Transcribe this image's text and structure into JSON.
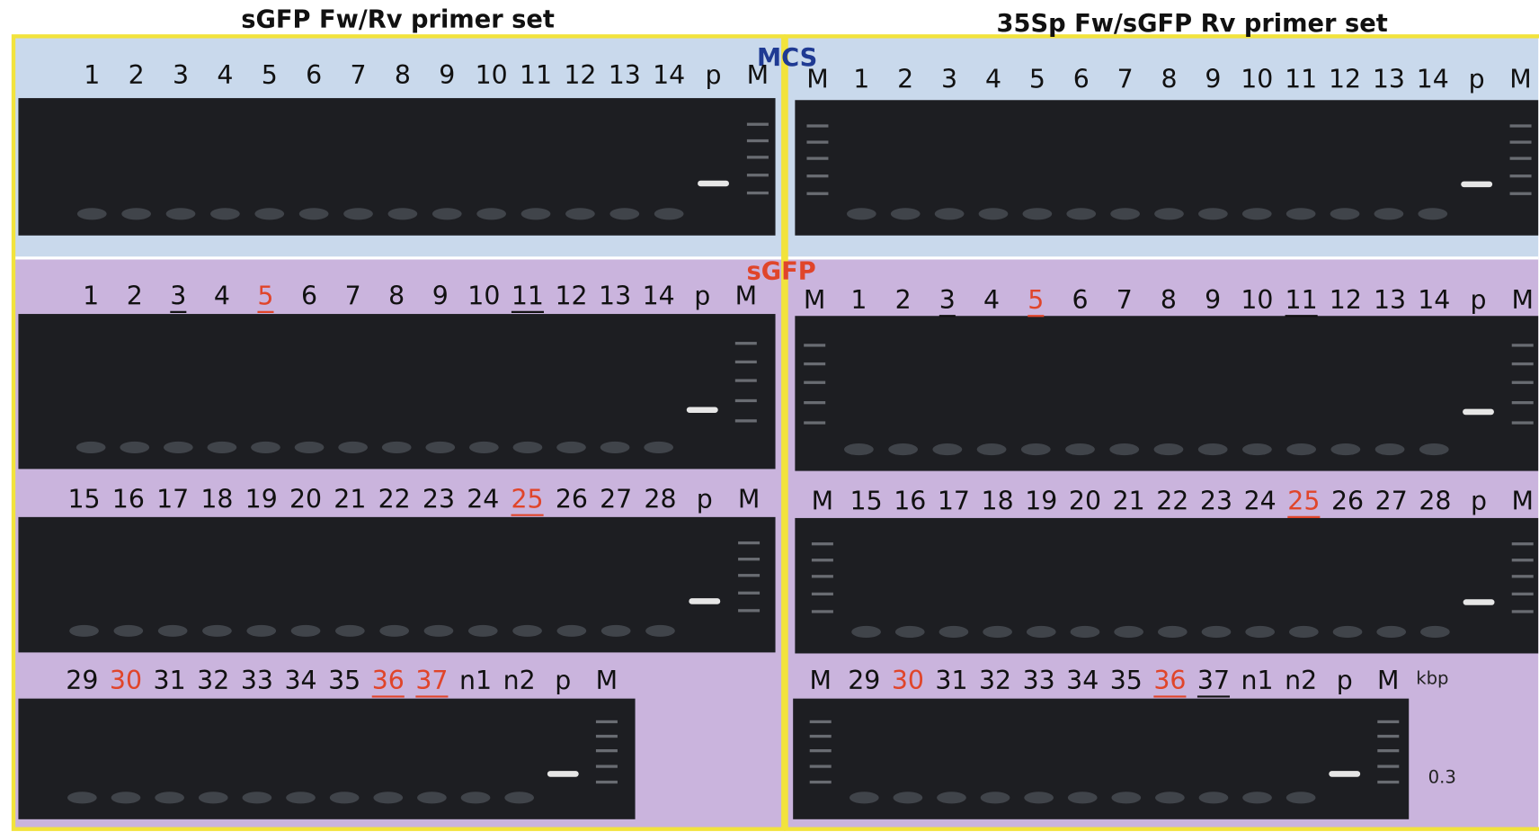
{
  "label_color": "#111111",
  "mcs_label": {
    "text": "MCS",
    "color": "#1f3a93"
  },
  "sgfp_label": {
    "text": "sGFP",
    "color": "#e0452a"
  },
  "kbp_label": "kbp",
  "size_label": "0.3",
  "panels": [
    {
      "title": "sGFP Fw/Rv primer set",
      "rows": [
        {
          "lanes": [
            {
              "text": "1"
            },
            {
              "text": "2"
            },
            {
              "text": "3"
            },
            {
              "text": "4"
            },
            {
              "text": "5"
            },
            {
              "text": "6"
            },
            {
              "text": "7"
            },
            {
              "text": "8"
            },
            {
              "text": "9"
            },
            {
              "text": "10"
            },
            {
              "text": "11"
            },
            {
              "text": "12"
            },
            {
              "text": "13"
            },
            {
              "text": "14"
            },
            {
              "text": "p"
            },
            {
              "text": "M"
            }
          ]
        },
        {
          "lanes": [
            {
              "text": "1"
            },
            {
              "text": "2"
            },
            {
              "text": "3",
              "underline": true
            },
            {
              "text": "4"
            },
            {
              "text": "5",
              "color": "#e0452a",
              "underline": true
            },
            {
              "text": "6"
            },
            {
              "text": "7"
            },
            {
              "text": "8"
            },
            {
              "text": "9"
            },
            {
              "text": "10"
            },
            {
              "text": "11",
              "underline": true
            },
            {
              "text": "12"
            },
            {
              "text": "13"
            },
            {
              "text": "14"
            },
            {
              "text": "p"
            },
            {
              "text": "M"
            }
          ]
        },
        {
          "lanes": [
            {
              "text": "15"
            },
            {
              "text": "16"
            },
            {
              "text": "17"
            },
            {
              "text": "18"
            },
            {
              "text": "19"
            },
            {
              "text": "20"
            },
            {
              "text": "21"
            },
            {
              "text": "22"
            },
            {
              "text": "23"
            },
            {
              "text": "24"
            },
            {
              "text": "25",
              "color": "#e0452a",
              "underline": true
            },
            {
              "text": "26"
            },
            {
              "text": "27"
            },
            {
              "text": "28"
            },
            {
              "text": "p"
            },
            {
              "text": "M"
            }
          ]
        },
        {
          "lanes": [
            {
              "text": "29"
            },
            {
              "text": "30",
              "color": "#e0452a"
            },
            {
              "text": "31"
            },
            {
              "text": "32"
            },
            {
              "text": "33"
            },
            {
              "text": "34"
            },
            {
              "text": "35"
            },
            {
              "text": "36",
              "color": "#e0452a",
              "underline": true
            },
            {
              "text": "37",
              "color": "#e0452a",
              "underline": true
            },
            {
              "text": "n1"
            },
            {
              "text": "n2"
            },
            {
              "text": "p"
            },
            {
              "text": "M"
            }
          ]
        }
      ]
    },
    {
      "title": "35Sp Fw/sGFP Rv primer set",
      "rows": [
        {
          "lanes": [
            {
              "text": "M"
            },
            {
              "text": "1"
            },
            {
              "text": "2"
            },
            {
              "text": "3"
            },
            {
              "text": "4"
            },
            {
              "text": "5"
            },
            {
              "text": "6"
            },
            {
              "text": "7"
            },
            {
              "text": "8"
            },
            {
              "text": "9"
            },
            {
              "text": "10"
            },
            {
              "text": "11"
            },
            {
              "text": "12"
            },
            {
              "text": "13"
            },
            {
              "text": "14"
            },
            {
              "text": "p"
            },
            {
              "text": "M"
            }
          ]
        },
        {
          "lanes": [
            {
              "text": "M"
            },
            {
              "text": "1"
            },
            {
              "text": "2"
            },
            {
              "text": "3",
              "underline": true
            },
            {
              "text": "4"
            },
            {
              "text": "5",
              "color": "#e0452a",
              "underline": true
            },
            {
              "text": "6"
            },
            {
              "text": "7"
            },
            {
              "text": "8"
            },
            {
              "text": "9"
            },
            {
              "text": "10"
            },
            {
              "text": "11",
              "underline": true
            },
            {
              "text": "12"
            },
            {
              "text": "13"
            },
            {
              "text": "14"
            },
            {
              "text": "p"
            },
            {
              "text": "M"
            }
          ]
        },
        {
          "lanes": [
            {
              "text": "M"
            },
            {
              "text": "15"
            },
            {
              "text": "16"
            },
            {
              "text": "17"
            },
            {
              "text": "18"
            },
            {
              "text": "19"
            },
            {
              "text": "20"
            },
            {
              "text": "21"
            },
            {
              "text": "22"
            },
            {
              "text": "23"
            },
            {
              "text": "24"
            },
            {
              "text": "25",
              "color": "#e0452a",
              "underline": true
            },
            {
              "text": "26"
            },
            {
              "text": "27"
            },
            {
              "text": "28"
            },
            {
              "text": "p"
            },
            {
              "text": "M"
            }
          ]
        },
        {
          "lanes": [
            {
              "text": "M"
            },
            {
              "text": "29"
            },
            {
              "text": "30",
              "color": "#e0452a"
            },
            {
              "text": "31"
            },
            {
              "text": "32"
            },
            {
              "text": "33"
            },
            {
              "text": "34"
            },
            {
              "text": "35"
            },
            {
              "text": "36",
              "color": "#e0452a",
              "underline": true
            },
            {
              "text": "37",
              "underline": true
            },
            {
              "text": "n1"
            },
            {
              "text": "n2"
            },
            {
              "text": "p"
            },
            {
              "text": "M"
            }
          ]
        }
      ]
    }
  ]
}
